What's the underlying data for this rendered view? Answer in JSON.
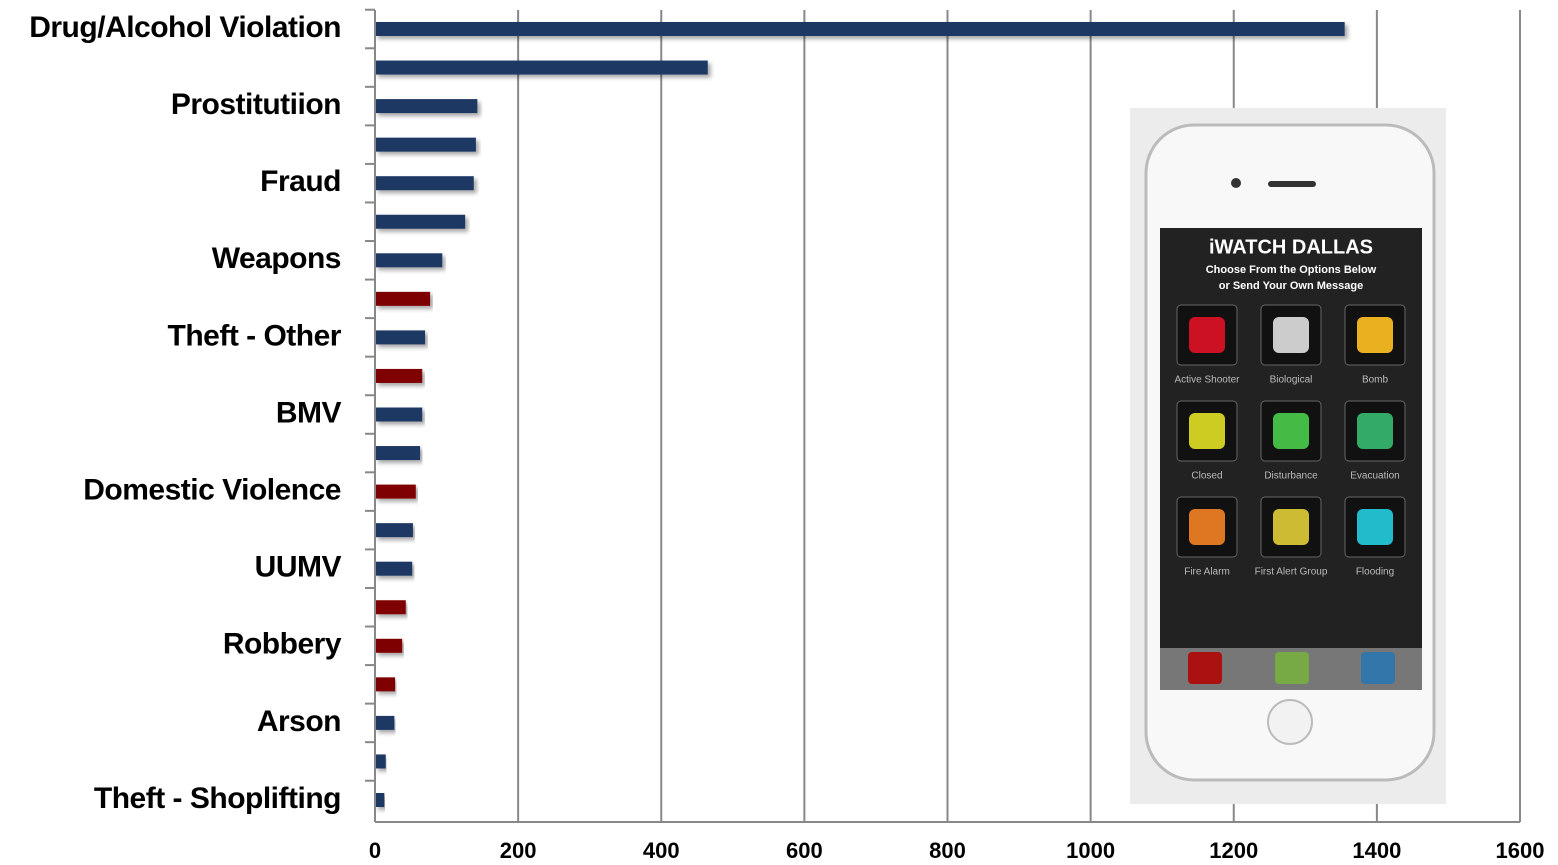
{
  "chart_data": {
    "type": "bar",
    "orientation": "horizontal",
    "categories": [
      "Drug/Alcohol Violation",
      null,
      "Prostitutiion",
      null,
      "Fraud",
      null,
      "Weapons",
      null,
      "Theft - Other",
      null,
      "BMV",
      null,
      "Domestic Violence",
      null,
      "UUMV",
      null,
      "Robbery",
      null,
      "Arson",
      null,
      "Theft - Shoplifting"
    ],
    "values": [
      1355,
      465,
      143,
      141,
      138,
      126,
      94,
      77,
      70,
      66,
      66,
      63,
      57,
      53,
      52,
      43,
      38,
      28,
      27,
      15,
      13
    ],
    "colors": [
      "#1f3864",
      "#1f3864",
      "#1f3864",
      "#1f3864",
      "#1f3864",
      "#1f3864",
      "#1f3864",
      "#7f0000",
      "#1f3864",
      "#7f0000",
      "#1f3864",
      "#1f3864",
      "#7f0000",
      "#1f3864",
      "#1f3864",
      "#7f0000",
      "#7f0000",
      "#7f0000",
      "#1f3864",
      "#1f3864",
      "#1f3864"
    ],
    "xlim": [
      0,
      1600
    ],
    "xticks": [
      0,
      200,
      400,
      600,
      800,
      1000,
      1200,
      1400,
      1600
    ],
    "grid": true
  },
  "inset": {
    "title": "iWATCH DALLAS",
    "subtitle": [
      "Choose From the Options Below",
      "or Send Your Own Message"
    ],
    "buttons": [
      "Active Shooter",
      "Biological",
      "Bomb",
      "Closed",
      "Disturbance",
      "Evacuation",
      "Fire Alarm",
      "First Alert Group",
      "Flooding"
    ]
  }
}
